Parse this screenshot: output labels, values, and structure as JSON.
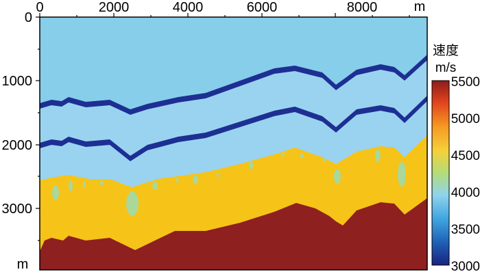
{
  "figure": {
    "x_axis": {
      "tick_labels": [
        "0",
        "2000",
        "4000",
        "6000",
        "8000"
      ],
      "unit": "m"
    },
    "y_axis": {
      "tick_labels": [
        "0",
        "1000",
        "2000",
        "3000"
      ],
      "unit": "m"
    },
    "colorbar": {
      "title_line1": "速度",
      "title_line2": "m/s",
      "tick_labels": [
        "5500",
        "5000",
        "4500",
        "4000",
        "3500",
        "3000"
      ],
      "range": [
        3000,
        5500
      ]
    },
    "colors": {
      "top_layer": "#87ceea",
      "second_layer": "#9ad3ef",
      "thin_layers": "#1d2f93",
      "yellow_layer": "#f6c318",
      "red_layer": "#8e2020",
      "lens": "#a9d89a"
    }
  }
}
